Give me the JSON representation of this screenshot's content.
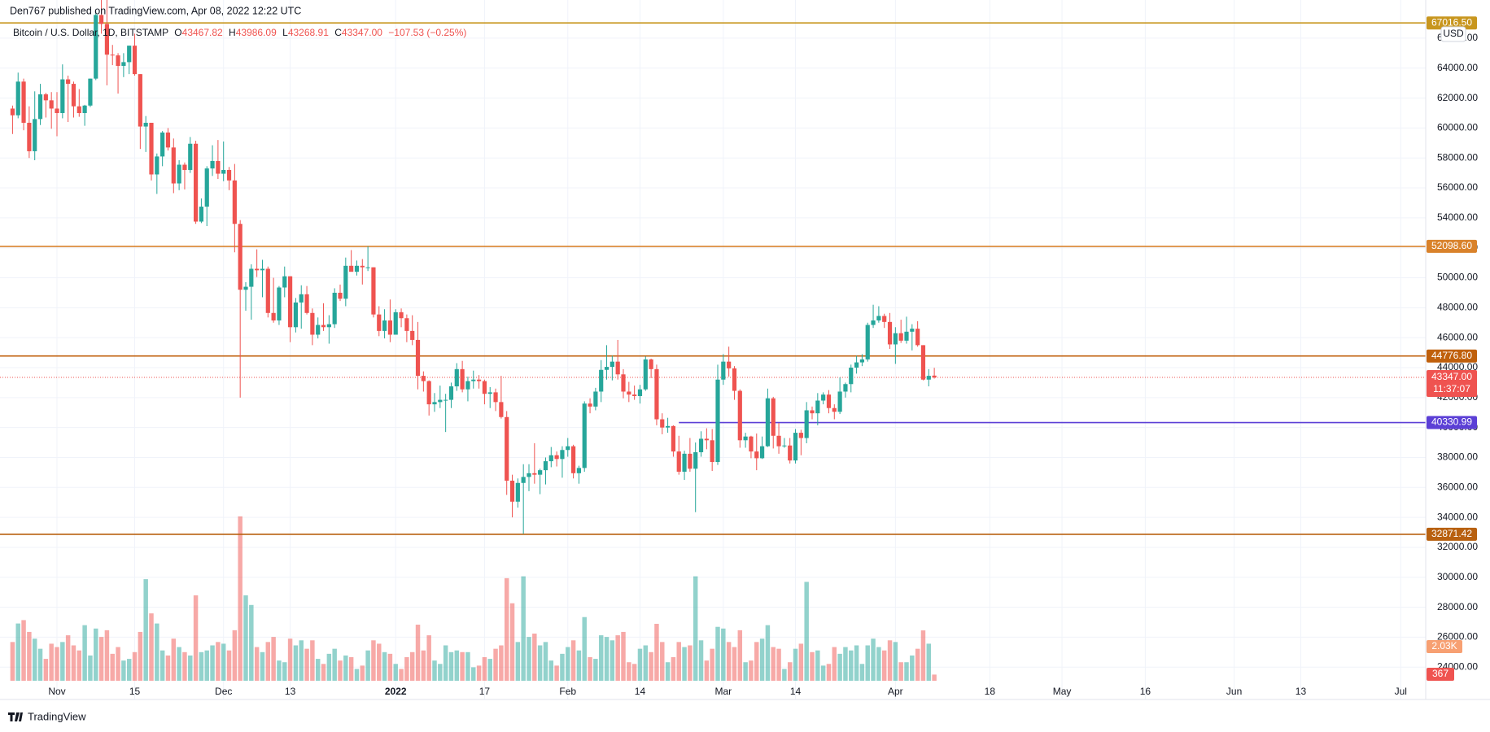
{
  "header": {
    "published": "Den767 published on TradingView.com, Apr 08, 2022 12:22 UTC",
    "symbol": "Bitcoin / U.S. Dollar, 1D, BITSTAMP",
    "open_label": "O",
    "open": "43467.82",
    "high_label": "H",
    "high": "43986.09",
    "low_label": "L",
    "low": "43268.91",
    "close_label": "C",
    "close": "43347.00",
    "change": "−107.53 (−0.25%)",
    "currency": "USD"
  },
  "footer": {
    "brand": "TradingView"
  },
  "chart_data": {
    "type": "candlestick",
    "up_color": "#26a69a",
    "down_color": "#ef5350",
    "grid": true,
    "xlim": [
      -0.5,
      254.5
    ],
    "xticks": [
      {
        "value": 8,
        "label": "Nov"
      },
      {
        "value": 22,
        "label": "15"
      },
      {
        "value": 38,
        "label": "Dec"
      },
      {
        "value": 50,
        "label": "13"
      },
      {
        "value": 69,
        "label": "2022"
      },
      {
        "value": 85,
        "label": "17"
      },
      {
        "value": 100,
        "label": "Feb"
      },
      {
        "value": 113,
        "label": "14"
      },
      {
        "value": 128,
        "label": "Mar"
      },
      {
        "value": 141,
        "label": "14"
      },
      {
        "value": 159,
        "label": "Apr"
      },
      {
        "value": 176,
        "label": "18"
      },
      {
        "value": 189,
        "label": "May"
      },
      {
        "value": 204,
        "label": "16"
      },
      {
        "value": 220,
        "label": "Jun"
      },
      {
        "value": 232,
        "label": "13"
      },
      {
        "value": 250,
        "label": "Jul"
      }
    ],
    "ylim": [
      23090,
      67300
    ],
    "yticks": [
      {
        "value": 24000,
        "label": "24000.00"
      },
      {
        "value": 26000,
        "label": "26000.00"
      },
      {
        "value": 28000,
        "label": "28000.00"
      },
      {
        "value": 30000,
        "label": "30000.00"
      },
      {
        "value": 32000,
        "label": "32000.00"
      },
      {
        "value": 34000,
        "label": "34000.00"
      },
      {
        "value": 36000,
        "label": "36000.00"
      },
      {
        "value": 38000,
        "label": "38000.00"
      },
      {
        "value": 40000,
        "label": "40000.00"
      },
      {
        "value": 42000,
        "label": "42000.00"
      },
      {
        "value": 44000,
        "label": "44000.00"
      },
      {
        "value": 46000,
        "label": "46000.00"
      },
      {
        "value": 48000,
        "label": "48000.00"
      },
      {
        "value": 50000,
        "label": "50000.00"
      },
      {
        "value": 52000,
        "label": "52000.00"
      },
      {
        "value": 54000,
        "label": "54000.00"
      },
      {
        "value": 56000,
        "label": "56000.00"
      },
      {
        "value": 58000,
        "label": "58000.00"
      },
      {
        "value": 60000,
        "label": "60000.00"
      },
      {
        "value": 62000,
        "label": "62000.00"
      },
      {
        "value": 64000,
        "label": "64000.00"
      },
      {
        "value": 66000,
        "label": "66000.00"
      }
    ],
    "levels": [
      {
        "value": 67016.5,
        "label": "67016.50",
        "color": "#c8961e"
      },
      {
        "value": 52098.6,
        "label": "52098.60",
        "color": "#d9822b"
      },
      {
        "value": 44776.8,
        "label": "44776.80",
        "color": "#c0600c"
      },
      {
        "value": 40330.99,
        "label": "40330.99",
        "color": "#5b3fd6",
        "from": 120
      },
      {
        "value": 32871.42,
        "label": "32871.42",
        "color": "#b8600f"
      }
    ],
    "last_price": {
      "value": 43347,
      "label": "43347.00",
      "countdown": "11:37:07",
      "color": "#ef5350"
    },
    "volume_ylim": [
      0,
      39300
    ],
    "volume_labels": {
      "ma": {
        "value": 2030,
        "label": "2.03K"
      },
      "last": {
        "value": 367,
        "label": "367"
      }
    },
    "candles": [
      [
        61300,
        61500,
        59600,
        60850
      ],
      [
        60850,
        63700,
        60650,
        63100
      ],
      [
        63100,
        63300,
        59850,
        60350
      ],
      [
        60350,
        61450,
        58000,
        58450
      ],
      [
        58450,
        62450,
        57850,
        60600
      ],
      [
        60600,
        62950,
        60200,
        62250
      ],
      [
        62250,
        62350,
        60700,
        61850
      ],
      [
        61850,
        62400,
        59950,
        61300
      ],
      [
        61300,
        62400,
        59450,
        61000
      ],
      [
        61000,
        64250,
        60650,
        63250
      ],
      [
        63250,
        63500,
        60400,
        62950
      ],
      [
        62950,
        63100,
        60700,
        61450
      ],
      [
        61450,
        62600,
        60750,
        61000
      ],
      [
        61000,
        61550,
        60150,
        61500
      ],
      [
        61500,
        63300,
        61400,
        63300
      ],
      [
        63300,
        67800,
        63200,
        67550
      ],
      [
        67550,
        68550,
        66300,
        66950
      ],
      [
        66950,
        69000,
        62850,
        64900
      ],
      [
        64900,
        65550,
        64200,
        64850
      ],
      [
        64850,
        65000,
        62300,
        64150
      ],
      [
        64150,
        65000,
        63400,
        64400
      ],
      [
        64400,
        65500,
        63600,
        65500
      ],
      [
        65500,
        66300,
        63500,
        63600
      ],
      [
        63600,
        63600,
        58600,
        60100
      ],
      [
        60100,
        60800,
        58400,
        60350
      ],
      [
        60350,
        60350,
        56500,
        56900
      ],
      [
        56900,
        58300,
        55600,
        58100
      ],
      [
        58100,
        59800,
        57450,
        59700
      ],
      [
        59700,
        60000,
        58500,
        58700
      ],
      [
        58700,
        59300,
        55650,
        56300
      ],
      [
        56300,
        57850,
        55850,
        57550
      ],
      [
        57550,
        57700,
        55900,
        57200
      ],
      [
        57200,
        59400,
        57000,
        58950
      ],
      [
        58950,
        59150,
        53600,
        53750
      ],
      [
        53750,
        55300,
        53650,
        54750
      ],
      [
        54750,
        57450,
        53450,
        57300
      ],
      [
        57300,
        58850,
        56800,
        57800
      ],
      [
        57800,
        59200,
        56600,
        56950
      ],
      [
        56950,
        59100,
        56450,
        57200
      ],
      [
        57200,
        57400,
        55850,
        56500
      ],
      [
        56500,
        57600,
        51700,
        53600
      ],
      [
        53600,
        53850,
        42000,
        49200
      ],
      [
        49200,
        49700,
        47800,
        49400
      ],
      [
        49400,
        50900,
        47200,
        50600
      ],
      [
        50600,
        51900,
        50050,
        50500
      ],
      [
        50500,
        51200,
        48700,
        50600
      ],
      [
        50600,
        50750,
        47350,
        47650
      ],
      [
        47650,
        50000,
        47000,
        47150
      ],
      [
        47150,
        49450,
        46850,
        49350
      ],
      [
        49350,
        50750,
        48700,
        50100
      ],
      [
        50100,
        50100,
        45700,
        46700
      ],
      [
        46700,
        48650,
        46350,
        48350
      ],
      [
        48350,
        49500,
        46600,
        48900
      ],
      [
        48900,
        49450,
        47550,
        47650
      ],
      [
        47650,
        47950,
        45500,
        46200
      ],
      [
        46200,
        47350,
        45950,
        46850
      ],
      [
        46850,
        48300,
        46450,
        46700
      ],
      [
        46700,
        47500,
        45600,
        46900
      ],
      [
        46900,
        49300,
        46650,
        49000
      ],
      [
        49000,
        49550,
        48450,
        48600
      ],
      [
        48600,
        51350,
        48100,
        50800
      ],
      [
        50800,
        51850,
        50450,
        50400
      ],
      [
        50400,
        51150,
        50150,
        50800
      ],
      [
        50800,
        51250,
        49550,
        50700
      ],
      [
        50700,
        52100,
        50450,
        50700
      ],
      [
        50700,
        50700,
        47350,
        47550
      ],
      [
        47550,
        48100,
        46100,
        46450
      ],
      [
        46450,
        47900,
        45950,
        47150
      ],
      [
        47150,
        48550,
        45700,
        46200
      ],
      [
        46200,
        47900,
        46200,
        47700
      ],
      [
        47700,
        47950,
        46700,
        47300
      ],
      [
        47300,
        47550,
        45700,
        46450
      ],
      [
        46450,
        47500,
        45500,
        45850
      ],
      [
        45850,
        47050,
        42550,
        43450
      ],
      [
        43450,
        43750,
        42400,
        43100
      ],
      [
        43100,
        43150,
        40800,
        41550
      ],
      [
        41550,
        42300,
        41050,
        41700
      ],
      [
        41700,
        42800,
        41300,
        41850
      ],
      [
        41850,
        42250,
        39700,
        41850
      ],
      [
        41850,
        43000,
        41300,
        42750
      ],
      [
        42750,
        44300,
        42450,
        43900
      ],
      [
        43900,
        44450,
        42350,
        42550
      ],
      [
        42550,
        43400,
        41750,
        43100
      ],
      [
        43100,
        43800,
        42600,
        43200
      ],
      [
        43200,
        43500,
        42600,
        43100
      ],
      [
        43100,
        43200,
        41550,
        42250
      ],
      [
        42250,
        42700,
        41300,
        42350
      ],
      [
        42350,
        42600,
        41100,
        41700
      ],
      [
        41700,
        43450,
        40600,
        40700
      ],
      [
        40700,
        41100,
        35500,
        36450
      ],
      [
        36450,
        36850,
        34000,
        35050
      ],
      [
        35050,
        36600,
        34650,
        36300
      ],
      [
        36300,
        37550,
        32900,
        36700
      ],
      [
        36700,
        37550,
        35750,
        36950
      ],
      [
        36950,
        38950,
        36250,
        36850
      ],
      [
        36850,
        37250,
        35550,
        37150
      ],
      [
        37150,
        38000,
        36200,
        37750
      ],
      [
        37750,
        38700,
        37350,
        38150
      ],
      [
        38150,
        38400,
        37400,
        37900
      ],
      [
        37900,
        38750,
        36650,
        38500
      ],
      [
        38500,
        39300,
        38050,
        38750
      ],
      [
        38750,
        38850,
        36600,
        36950
      ],
      [
        36950,
        37450,
        36250,
        37300
      ],
      [
        37300,
        41750,
        37050,
        41600
      ],
      [
        41600,
        41950,
        40950,
        41400
      ],
      [
        41400,
        42650,
        41150,
        42400
      ],
      [
        42400,
        44500,
        41700,
        43850
      ],
      [
        43850,
        45500,
        43200,
        44050
      ],
      [
        44050,
        44800,
        43150,
        44400
      ],
      [
        44400,
        45850,
        43200,
        43550
      ],
      [
        43550,
        43900,
        41950,
        42400
      ],
      [
        42400,
        43050,
        41700,
        42200
      ],
      [
        42200,
        42800,
        41850,
        42100
      ],
      [
        42100,
        42850,
        41600,
        42550
      ],
      [
        42550,
        44750,
        42450,
        44550
      ],
      [
        44550,
        44600,
        43300,
        43900
      ],
      [
        43900,
        44200,
        40150,
        40550
      ],
      [
        40550,
        40950,
        39550,
        40000
      ],
      [
        40000,
        40650,
        39650,
        40100
      ],
      [
        40100,
        40150,
        38050,
        38400
      ],
      [
        38400,
        39450,
        36850,
        37050
      ],
      [
        37050,
        38450,
        36500,
        38250
      ],
      [
        38250,
        39300,
        37050,
        37250
      ],
      [
        37250,
        39000,
        34350,
        38350
      ],
      [
        38350,
        39750,
        38050,
        39250
      ],
      [
        39250,
        39950,
        38550,
        39150
      ],
      [
        39150,
        39900,
        37100,
        37700
      ],
      [
        37700,
        44200,
        37500,
        43200
      ],
      [
        43200,
        44900,
        42850,
        44400
      ],
      [
        44400,
        45400,
        43400,
        43950
      ],
      [
        43950,
        44100,
        41850,
        42450
      ],
      [
        42450,
        42550,
        38650,
        39150
      ],
      [
        39150,
        39650,
        38650,
        39400
      ],
      [
        39400,
        39450,
        37950,
        38400
      ],
      [
        38400,
        39600,
        37150,
        37950
      ],
      [
        37950,
        39400,
        37900,
        38750
      ],
      [
        38750,
        42600,
        38700,
        41950
      ],
      [
        41950,
        42050,
        38600,
        39450
      ],
      [
        39450,
        40300,
        38250,
        38750
      ],
      [
        38750,
        39300,
        38650,
        38800
      ],
      [
        38800,
        39300,
        37600,
        37800
      ],
      [
        37800,
        39900,
        37600,
        39650
      ],
      [
        39650,
        39850,
        38150,
        39300
      ],
      [
        39300,
        41700,
        38950,
        41150
      ],
      [
        41150,
        41400,
        40550,
        40950
      ],
      [
        40950,
        42300,
        40150,
        41800
      ],
      [
        41800,
        42350,
        41550,
        42200
      ],
      [
        42200,
        42500,
        40950,
        41300
      ],
      [
        41300,
        41550,
        40550,
        41050
      ],
      [
        41050,
        43350,
        40900,
        42400
      ],
      [
        42400,
        43000,
        42000,
        42900
      ],
      [
        42900,
        44200,
        42350,
        44000
      ],
      [
        44000,
        44800,
        43600,
        44350
      ],
      [
        44350,
        44900,
        44100,
        44550
      ],
      [
        44550,
        47000,
        44400,
        46850
      ],
      [
        46850,
        48200,
        46650,
        47150
      ],
      [
        47150,
        48100,
        47000,
        47450
      ],
      [
        47450,
        47600,
        46650,
        47050
      ],
      [
        47050,
        47650,
        45250,
        45550
      ],
      [
        45550,
        46700,
        44250,
        46300
      ],
      [
        46300,
        47200,
        45650,
        45800
      ],
      [
        45800,
        47400,
        45600,
        46400
      ],
      [
        46400,
        46900,
        45150,
        46600
      ],
      [
        46600,
        47100,
        45400,
        45500
      ],
      [
        45500,
        45500,
        43150,
        43200
      ],
      [
        43200,
        43900,
        42750,
        43450
      ],
      [
        43467.82,
        43986.09,
        43268.91,
        43347.0
      ]
    ],
    "volume": [
      2300,
      3400,
      3600,
      2900,
      2500,
      1900,
      1300,
      2200,
      2000,
      2300,
      2700,
      2100,
      1800,
      3300,
      1500,
      3100,
      2600,
      3000,
      1600,
      2000,
      1200,
      1300,
      1700,
      2900,
      6030,
      4000,
      3400,
      1800,
      1500,
      2500,
      2000,
      1700,
      1500,
      5070,
      1700,
      1800,
      2100,
      2300,
      2200,
      1800,
      3000,
      9760,
      5070,
      4500,
      2000,
      1700,
      2300,
      2600,
      1200,
      1100,
      2500,
      2100,
      2400,
      1900,
      2400,
      1300,
      1000,
      1600,
      1900,
      1200,
      1500,
      1400,
      700,
      900,
      1800,
      2400,
      2200,
      1700,
      1600,
      1000,
      700,
      1400,
      1700,
      3330,
      1800,
      2700,
      1200,
      1000,
      2100,
      1700,
      1800,
      1700,
      1700,
      800,
      900,
      1400,
      1300,
      1900,
      2100,
      6090,
      4600,
      2300,
      6200,
      2600,
      2800,
      2100,
      2300,
      1200,
      900,
      1600,
      2000,
      2400,
      1800,
      3780,
      1400,
      1300,
      2700,
      2600,
      2400,
      2700,
      2900,
      1100,
      1000,
      1900,
      2100,
      1700,
      3380,
      2300,
      1100,
      1400,
      2300,
      2000,
      2100,
      6200,
      2400,
      1200,
      1900,
      3200,
      3100,
      2300,
      2000,
      3000,
      1100,
      1200,
      2300,
      2500,
      3300,
      2000,
      1900,
      700,
      1100,
      1900,
      2200,
      5870,
      1700,
      1800,
      900,
      1000,
      2000,
      1600,
      2000,
      1800,
      2100,
      1000,
      2100,
      2500,
      2000,
      1800,
      2400,
      2300,
      1100,
      1100,
      1500,
      1900,
      2990,
      2200,
      367
    ]
  }
}
